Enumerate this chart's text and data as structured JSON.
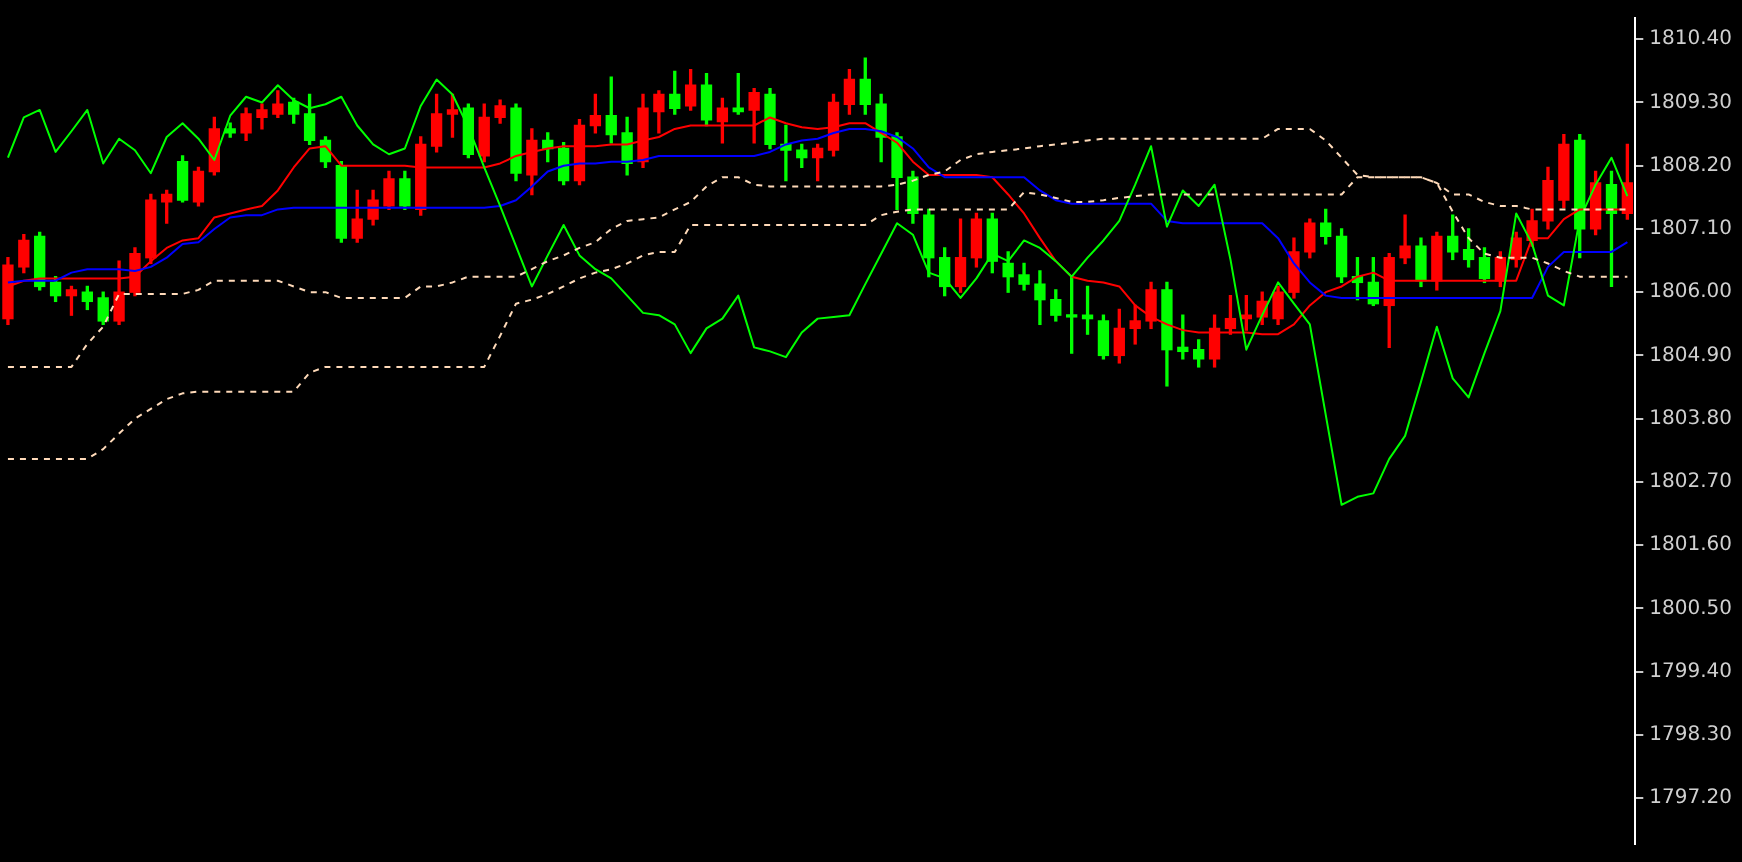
{
  "chart_data": {
    "type": "candlestick",
    "categories": [
      null,
      null,
      null,
      null,
      null,
      null,
      null,
      null,
      null,
      null,
      null,
      null,
      null,
      null,
      null,
      null,
      null,
      null,
      null,
      null,
      null,
      null,
      null,
      null,
      null,
      null,
      null,
      null,
      null,
      null,
      null,
      null,
      null,
      null,
      null,
      null,
      null,
      null,
      null,
      null,
      null,
      null,
      null,
      null,
      null,
      null,
      null,
      null,
      null,
      null,
      null,
      null,
      null,
      null,
      null,
      null,
      null,
      null,
      null,
      null,
      null,
      null,
      null,
      null,
      null,
      null,
      null,
      null,
      null,
      null,
      null,
      null,
      null,
      null,
      null,
      null,
      null,
      null,
      null,
      null,
      null,
      null,
      null,
      null,
      null,
      null,
      null,
      null,
      null,
      null,
      null,
      null,
      null,
      null,
      null,
      null,
      null,
      null,
      null,
      null,
      null,
      null,
      null
    ],
    "ohlc": [
      [
        1805.54,
        1806.6,
        1805.44,
        1806.47
      ],
      [
        1806.44,
        1807.0,
        1806.34,
        1806.9
      ],
      [
        1806.97,
        1807.04,
        1806.04,
        1806.1
      ],
      [
        1806.17,
        1806.27,
        1805.84,
        1805.94
      ],
      [
        1805.94,
        1806.1,
        1805.6,
        1806.04
      ],
      [
        1806.0,
        1806.1,
        1805.7,
        1805.84
      ],
      [
        1805.9,
        1806.0,
        1805.44,
        1805.5
      ],
      [
        1805.5,
        1806.54,
        1805.44,
        1806.0
      ],
      [
        1806.0,
        1806.77,
        1805.94,
        1806.67
      ],
      [
        1806.6,
        1807.7,
        1806.5,
        1807.6
      ],
      [
        1807.57,
        1807.77,
        1807.2,
        1807.7
      ],
      [
        1808.27,
        1808.37,
        1807.57,
        1807.6
      ],
      [
        1807.57,
        1808.17,
        1807.5,
        1808.1
      ],
      [
        1808.1,
        1809.04,
        1808.04,
        1808.84
      ],
      [
        1808.84,
        1808.94,
        1808.7,
        1808.77
      ],
      [
        1808.77,
        1809.2,
        1808.64,
        1809.1
      ],
      [
        1809.04,
        1809.27,
        1808.84,
        1809.17
      ],
      [
        1809.1,
        1809.5,
        1809.04,
        1809.27
      ],
      [
        1809.3,
        1809.37,
        1808.94,
        1809.1
      ],
      [
        1809.1,
        1809.44,
        1808.57,
        1808.64
      ],
      [
        1808.64,
        1808.7,
        1808.17,
        1808.27
      ],
      [
        1808.2,
        1808.27,
        1806.87,
        1806.94
      ],
      [
        1806.94,
        1807.77,
        1806.87,
        1807.27
      ],
      [
        1807.27,
        1807.77,
        1807.17,
        1807.6
      ],
      [
        1807.5,
        1808.1,
        1807.44,
        1807.97
      ],
      [
        1807.97,
        1808.1,
        1807.44,
        1807.5
      ],
      [
        1807.44,
        1808.7,
        1807.34,
        1808.57
      ],
      [
        1808.54,
        1809.44,
        1808.44,
        1809.1
      ],
      [
        1809.1,
        1809.44,
        1808.7,
        1809.17
      ],
      [
        1809.2,
        1809.27,
        1808.34,
        1808.4
      ],
      [
        1808.37,
        1809.27,
        1808.27,
        1809.04
      ],
      [
        1809.04,
        1809.34,
        1808.94,
        1809.24
      ],
      [
        1809.2,
        1809.27,
        1807.94,
        1808.07
      ],
      [
        1808.04,
        1808.84,
        1807.7,
        1808.64
      ],
      [
        1808.64,
        1808.77,
        1808.27,
        1808.5
      ],
      [
        1808.5,
        1808.6,
        1807.87,
        1807.94
      ],
      [
        1807.94,
        1809.0,
        1807.87,
        1808.9
      ],
      [
        1808.9,
        1809.44,
        1808.77,
        1809.07
      ],
      [
        1809.07,
        1809.74,
        1808.6,
        1808.74
      ],
      [
        1808.77,
        1809.04,
        1808.04,
        1808.24
      ],
      [
        1808.27,
        1809.44,
        1808.17,
        1809.2
      ],
      [
        1809.14,
        1809.5,
        1808.77,
        1809.44
      ],
      [
        1809.44,
        1809.84,
        1809.1,
        1809.2
      ],
      [
        1809.24,
        1809.87,
        1809.17,
        1809.6
      ],
      [
        1809.6,
        1809.8,
        1808.9,
        1809.0
      ],
      [
        1808.97,
        1809.37,
        1808.6,
        1809.2
      ],
      [
        1809.2,
        1809.8,
        1809.1,
        1809.14
      ],
      [
        1809.17,
        1809.54,
        1808.6,
        1809.47
      ],
      [
        1809.44,
        1809.54,
        1808.5,
        1808.57
      ],
      [
        1808.57,
        1808.9,
        1807.94,
        1808.47
      ],
      [
        1808.47,
        1808.57,
        1808.17,
        1808.34
      ],
      [
        1808.34,
        1808.57,
        1807.94,
        1808.5
      ],
      [
        1808.47,
        1809.44,
        1808.37,
        1809.3
      ],
      [
        1809.27,
        1809.87,
        1809.1,
        1809.7
      ],
      [
        1809.7,
        1810.07,
        1809.1,
        1809.27
      ],
      [
        1809.27,
        1809.44,
        1808.27,
        1808.7
      ],
      [
        1808.7,
        1808.77,
        1807.44,
        1808.0
      ],
      [
        1808.0,
        1808.1,
        1807.2,
        1807.37
      ],
      [
        1807.34,
        1807.44,
        1806.27,
        1806.6
      ],
      [
        1806.6,
        1806.77,
        1805.94,
        1806.1
      ],
      [
        1806.1,
        1807.27,
        1806.0,
        1806.6
      ],
      [
        1806.6,
        1807.37,
        1806.44,
        1807.27
      ],
      [
        1807.27,
        1807.37,
        1806.34,
        1806.54
      ],
      [
        1806.5,
        1806.7,
        1806.0,
        1806.27
      ],
      [
        1806.3,
        1806.5,
        1806.04,
        1806.14
      ],
      [
        1806.14,
        1806.37,
        1805.44,
        1805.87
      ],
      [
        1805.87,
        1806.04,
        1805.5,
        1805.6
      ],
      [
        1805.6,
        1806.27,
        1804.94,
        1805.57
      ],
      [
        1805.6,
        1806.1,
        1805.27,
        1805.54
      ],
      [
        1805.5,
        1805.6,
        1804.84,
        1804.9
      ],
      [
        1804.9,
        1805.7,
        1804.77,
        1805.37
      ],
      [
        1805.37,
        1805.77,
        1805.1,
        1805.5
      ],
      [
        1805.5,
        1806.17,
        1805.37,
        1806.04
      ],
      [
        1806.04,
        1806.17,
        1804.37,
        1805.0
      ],
      [
        1805.04,
        1805.6,
        1804.84,
        1804.97
      ],
      [
        1805.0,
        1805.17,
        1804.7,
        1804.84
      ],
      [
        1804.84,
        1805.6,
        1804.7,
        1805.37
      ],
      [
        1805.37,
        1805.94,
        1805.27,
        1805.54
      ],
      [
        1805.54,
        1805.94,
        1805.34,
        1805.6
      ],
      [
        1805.57,
        1806.0,
        1805.44,
        1805.84
      ],
      [
        1805.54,
        1806.1,
        1805.44,
        1806.0
      ],
      [
        1806.0,
        1806.94,
        1805.9,
        1806.7
      ],
      [
        1806.7,
        1807.27,
        1806.6,
        1807.2
      ],
      [
        1807.2,
        1807.44,
        1806.84,
        1806.97
      ],
      [
        1806.97,
        1807.1,
        1806.17,
        1806.27
      ],
      [
        1806.27,
        1806.6,
        1805.87,
        1806.17
      ],
      [
        1806.17,
        1806.6,
        1805.77,
        1805.8
      ],
      [
        1805.77,
        1806.67,
        1805.04,
        1806.6
      ],
      [
        1806.6,
        1807.34,
        1806.5,
        1806.8
      ],
      [
        1806.8,
        1806.94,
        1806.1,
        1806.2
      ],
      [
        1806.2,
        1807.04,
        1806.04,
        1806.97
      ],
      [
        1806.97,
        1807.34,
        1806.57,
        1806.7
      ],
      [
        1806.74,
        1807.1,
        1806.44,
        1806.57
      ],
      [
        1806.6,
        1806.77,
        1806.17,
        1806.24
      ],
      [
        1806.2,
        1806.7,
        1806.1,
        1806.6
      ],
      [
        1806.57,
        1807.04,
        1806.44,
        1806.94
      ],
      [
        1806.9,
        1807.44,
        1806.8,
        1807.24
      ],
      [
        1807.24,
        1808.17,
        1807.1,
        1807.94
      ],
      [
        1807.6,
        1808.74,
        1807.47,
        1808.57
      ],
      [
        1808.64,
        1808.74,
        1806.6,
        1807.1
      ],
      [
        1807.1,
        1808.1,
        1807.0,
        1807.9
      ],
      [
        1807.87,
        1808.1,
        1806.1,
        1807.37
      ],
      [
        1807.37,
        1808.57,
        1807.27,
        1807.9
      ]
    ],
    "colors": [
      "#ff0000",
      "#ff0000",
      "#00ff00",
      "#00ff00",
      "#ff0000",
      "#00ff00",
      "#00ff00",
      "#ff0000",
      "#ff0000",
      "#ff0000",
      "#ff0000",
      "#00ff00",
      "#ff0000",
      "#ff0000",
      "#00ff00",
      "#ff0000",
      "#ff0000",
      "#ff0000",
      "#00ff00",
      "#00ff00",
      "#00ff00",
      "#00ff00",
      "#ff0000",
      "#ff0000",
      "#ff0000",
      "#00ff00",
      "#ff0000",
      "#ff0000",
      "#ff0000",
      "#00ff00",
      "#ff0000",
      "#ff0000",
      "#00ff00",
      "#ff0000",
      "#00ff00",
      "#00ff00",
      "#ff0000",
      "#ff0000",
      "#00ff00",
      "#00ff00",
      "#ff0000",
      "#ff0000",
      "#00ff00",
      "#ff0000",
      "#00ff00",
      "#ff0000",
      "#00ff00",
      "#ff0000",
      "#00ff00",
      "#00ff00",
      "#00ff00",
      "#ff0000",
      "#ff0000",
      "#ff0000",
      "#00ff00",
      "#00ff00",
      "#00ff00",
      "#00ff00",
      "#00ff00",
      "#00ff00",
      "#ff0000",
      "#ff0000",
      "#00ff00",
      "#00ff00",
      "#00ff00",
      "#00ff00",
      "#00ff00",
      "#00ff00",
      "#00ff00",
      "#00ff00",
      "#ff0000",
      "#ff0000",
      "#ff0000",
      "#00ff00",
      "#00ff00",
      "#00ff00",
      "#ff0000",
      "#ff0000",
      "#ff0000",
      "#ff0000",
      "#ff0000",
      "#ff0000",
      "#ff0000",
      "#00ff00",
      "#00ff00",
      "#00ff00",
      "#00ff00",
      "#ff0000",
      "#ff0000",
      "#00ff00",
      "#ff0000",
      "#00ff00",
      "#00ff00",
      "#00ff00",
      "#ff0000",
      "#ff0000",
      "#ff0000",
      "#ff0000",
      "#ff0000",
      "#00ff00",
      "#ff0000",
      "#00ff00",
      "#ff0000"
    ],
    "series": [
      {
        "type": "line",
        "color": "#ff0000",
        "values": [
          1806.1,
          1806.2,
          1806.24,
          1806.24,
          1806.24,
          1806.24,
          1806.24,
          1806.24,
          1806.27,
          1806.54,
          1806.77,
          1806.9,
          1806.94,
          1807.3,
          1807.37,
          1807.44,
          1807.5,
          1807.77,
          1808.17,
          1808.5,
          1808.54,
          1808.2,
          1808.2,
          1808.2,
          1808.2,
          1808.2,
          1808.17,
          1808.17,
          1808.17,
          1808.17,
          1808.17,
          1808.24,
          1808.37,
          1808.44,
          1808.5,
          1808.54,
          1808.54,
          1808.54,
          1808.57,
          1808.57,
          1808.64,
          1808.7,
          1808.84,
          1808.9,
          1808.9,
          1808.9,
          1808.9,
          1808.9,
          1809.04,
          1808.94,
          1808.87,
          1808.84,
          1808.87,
          1808.94,
          1808.94,
          1808.77,
          1808.6,
          1808.27,
          1808.04,
          1808.04,
          1808.04,
          1808.04,
          1808.0,
          1807.7,
          1807.37,
          1806.94,
          1806.54,
          1806.27,
          1806.2,
          1806.17,
          1806.1,
          1805.77,
          1805.57,
          1805.44,
          1805.34,
          1805.3,
          1805.3,
          1805.3,
          1805.3,
          1805.27,
          1805.27,
          1805.44,
          1805.77,
          1806.0,
          1806.1,
          1806.27,
          1806.34,
          1806.2,
          1806.2,
          1806.2,
          1806.2,
          1806.2,
          1806.2,
          1806.2,
          1806.2,
          1806.2,
          1806.94,
          1806.94,
          1807.27,
          1807.44,
          1807.44,
          1807.44,
          1807.44
        ]
      },
      {
        "type": "line",
        "color": "#0000ff",
        "values": [
          1806.17,
          1806.2,
          1806.2,
          1806.2,
          1806.34,
          1806.4,
          1806.4,
          1806.4,
          1806.37,
          1806.44,
          1806.6,
          1806.84,
          1806.87,
          1807.1,
          1807.3,
          1807.34,
          1807.34,
          1807.44,
          1807.47,
          1807.47,
          1807.47,
          1807.47,
          1807.47,
          1807.47,
          1807.47,
          1807.47,
          1807.47,
          1807.47,
          1807.47,
          1807.47,
          1807.47,
          1807.5,
          1807.6,
          1807.84,
          1808.1,
          1808.2,
          1808.24,
          1808.24,
          1808.27,
          1808.27,
          1808.3,
          1808.37,
          1808.37,
          1808.37,
          1808.37,
          1808.37,
          1808.37,
          1808.37,
          1808.44,
          1808.57,
          1808.64,
          1808.67,
          1808.77,
          1808.84,
          1808.84,
          1808.8,
          1808.7,
          1808.5,
          1808.17,
          1808.0,
          1808.0,
          1808.0,
          1808.0,
          1808.0,
          1808.0,
          1807.77,
          1807.6,
          1807.54,
          1807.54,
          1807.54,
          1807.54,
          1807.54,
          1807.54,
          1807.24,
          1807.2,
          1807.2,
          1807.2,
          1807.2,
          1807.2,
          1807.2,
          1806.94,
          1806.5,
          1806.17,
          1805.94,
          1805.9,
          1805.9,
          1805.9,
          1805.9,
          1805.9,
          1805.9,
          1805.9,
          1805.9,
          1805.9,
          1805.9,
          1805.9,
          1805.9,
          1805.9,
          1806.44,
          1806.7,
          1806.7,
          1806.7,
          1806.7,
          1806.87
        ]
      },
      {
        "type": "line",
        "color": "#00ff00",
        "values": [
          1808.34,
          1809.04,
          1809.17,
          1808.44,
          1808.8,
          1809.17,
          1808.24,
          1808.67,
          1808.47,
          1808.07,
          1808.7,
          1808.94,
          1808.67,
          1808.3,
          1809.07,
          1809.4,
          1809.3,
          1809.6,
          1809.34,
          1809.2,
          1809.27,
          1809.4,
          1808.9,
          1808.57,
          1808.4,
          1808.5,
          1809.24,
          1809.7,
          1809.44,
          1808.87,
          1808.17,
          1807.5,
          1806.8,
          1806.1,
          1806.64,
          1807.17,
          1806.64,
          1806.4,
          1806.24,
          1805.94,
          1805.64,
          1805.6,
          1805.44,
          1804.94,
          1805.37,
          1805.54,
          1805.94,
          1805.04,
          1804.97,
          1804.87,
          1805.3,
          1805.54,
          1805.57,
          1805.6,
          1806.14,
          1806.67,
          1807.2,
          1807.0,
          1806.34,
          1806.24,
          1805.9,
          1806.24,
          1806.67,
          1806.54,
          1806.9,
          1806.77,
          1806.54,
          1806.27,
          1806.6,
          1806.9,
          1807.24,
          1807.87,
          1808.54,
          1807.14,
          1807.77,
          1807.5,
          1807.87,
          1806.57,
          1805.0,
          1805.6,
          1806.17,
          1805.8,
          1805.44,
          1803.87,
          1802.3,
          1802.44,
          1802.5,
          1803.1,
          1803.5,
          1804.44,
          1805.4,
          1804.5,
          1804.17,
          1804.94,
          1805.67,
          1807.37,
          1806.84,
          1805.94,
          1805.77,
          1807.27,
          1807.87,
          1808.34,
          1807.67
        ]
      },
      {
        "type": "line",
        "color": "#ffdab9",
        "line_style": "dashed",
        "values": [
          1804.7,
          1804.7,
          1804.7,
          1804.7,
          1804.7,
          1805.1,
          1805.4,
          1805.97,
          1805.97,
          1805.97,
          1805.97,
          1805.97,
          1806.04,
          1806.2,
          1806.2,
          1806.2,
          1806.2,
          1806.2,
          1806.1,
          1806.0,
          1806.0,
          1805.9,
          1805.9,
          1805.9,
          1805.9,
          1805.9,
          1806.1,
          1806.1,
          1806.17,
          1806.27,
          1806.27,
          1806.27,
          1806.27,
          1806.4,
          1806.54,
          1806.64,
          1806.77,
          1806.87,
          1807.1,
          1807.24,
          1807.27,
          1807.3,
          1807.44,
          1807.57,
          1807.84,
          1808.0,
          1808.0,
          1807.87,
          1807.84,
          1807.84,
          1807.84,
          1807.84,
          1807.84,
          1807.84,
          1807.84,
          1807.84,
          1807.87,
          1807.94,
          1808.04,
          1808.1,
          1808.3,
          1808.4,
          1808.44,
          1808.47,
          1808.5,
          1808.54,
          1808.57,
          1808.6,
          1808.64,
          1808.67,
          1808.67,
          1808.67,
          1808.67,
          1808.67,
          1808.67,
          1808.67,
          1808.67,
          1808.67,
          1808.67,
          1808.67,
          1808.84,
          1808.84,
          1808.84,
          1808.64,
          1808.34,
          1808.04,
          1808.0,
          1808.0,
          1808.0,
          1808.0,
          1807.9,
          1807.7,
          1807.7,
          1807.57,
          1807.5,
          1807.5,
          1807.44,
          1807.44,
          1807.44,
          1807.44,
          1807.44,
          1807.44,
          1807.44
        ]
      },
      {
        "type": "line",
        "color": "#ffdab9",
        "line_style": "dashed",
        "values": [
          1803.1,
          1803.1,
          1803.1,
          1803.1,
          1803.1,
          1803.1,
          1803.27,
          1803.54,
          1803.8,
          1803.97,
          1804.14,
          1804.24,
          1804.27,
          1804.27,
          1804.27,
          1804.27,
          1804.27,
          1804.27,
          1804.27,
          1804.6,
          1804.7,
          1804.7,
          1804.7,
          1804.7,
          1804.7,
          1804.7,
          1804.7,
          1804.7,
          1804.7,
          1804.7,
          1804.7,
          1805.24,
          1805.8,
          1805.87,
          1805.97,
          1806.1,
          1806.24,
          1806.34,
          1806.4,
          1806.5,
          1806.64,
          1806.7,
          1806.7,
          1807.17,
          1807.17,
          1807.17,
          1807.17,
          1807.17,
          1807.17,
          1807.17,
          1807.17,
          1807.17,
          1807.17,
          1807.17,
          1807.17,
          1807.34,
          1807.4,
          1807.44,
          1807.44,
          1807.44,
          1807.44,
          1807.44,
          1807.44,
          1807.44,
          1807.74,
          1807.7,
          1807.64,
          1807.57,
          1807.57,
          1807.6,
          1807.64,
          1807.67,
          1807.7,
          1807.7,
          1807.7,
          1807.7,
          1807.7,
          1807.7,
          1807.7,
          1807.7,
          1807.7,
          1807.7,
          1807.7,
          1807.7,
          1807.7,
          1808.0,
          1808.0,
          1808.0,
          1808.0,
          1808.0,
          1807.9,
          1807.4,
          1806.94,
          1806.67,
          1806.6,
          1806.6,
          1806.6,
          1806.5,
          1806.37,
          1806.27,
          1806.27,
          1806.27,
          1806.27
        ]
      }
    ],
    "ylim": [
      1796.4,
      1810.77
    ],
    "yticks": [
      {
        "value": 1797.2,
        "label": "1797.20"
      },
      {
        "value": 1798.3,
        "label": "1798.30"
      },
      {
        "value": 1799.4,
        "label": "1799.40"
      },
      {
        "value": 1800.5,
        "label": "1800.50"
      },
      {
        "value": 1801.6,
        "label": "1801.60"
      },
      {
        "value": 1802.7,
        "label": "1802.70"
      },
      {
        "value": 1803.8,
        "label": "1803.80"
      },
      {
        "value": 1804.9,
        "label": "1804.90"
      },
      {
        "value": 1806.0,
        "label": "1806.00"
      },
      {
        "value": 1807.1,
        "label": "1807.10"
      },
      {
        "value": 1808.2,
        "label": "1808.20"
      },
      {
        "value": 1809.3,
        "label": "1809.30"
      },
      {
        "value": 1810.4,
        "label": "1810.40"
      }
    ],
    "tick_labels": "y",
    "grid": false,
    "legend": false,
    "marker": "none"
  }
}
